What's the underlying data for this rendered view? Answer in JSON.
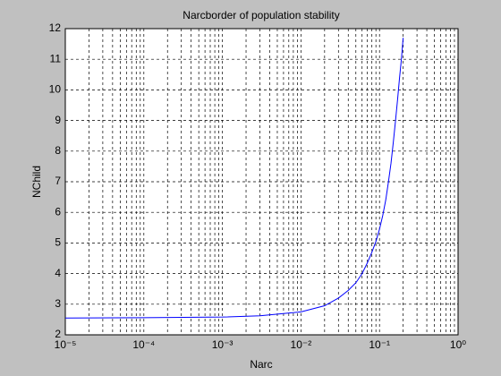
{
  "chart_data": {
    "type": "line",
    "title": "Narcborder of population stability",
    "x_label": "Narc",
    "y_label": "NChild",
    "x": [
      1e-05,
      0.0001,
      0.001,
      0.003,
      0.01,
      0.02,
      0.03,
      0.04,
      0.05,
      0.06,
      0.07,
      0.08,
      0.09,
      0.1,
      0.11,
      0.12,
      0.13,
      0.14,
      0.15,
      0.16,
      0.17,
      0.18,
      0.19,
      0.2
    ],
    "series": [
      {
        "name": "NChild",
        "color": "#0000ff",
        "values": [
          2.55,
          2.56,
          2.58,
          2.62,
          2.75,
          2.95,
          3.2,
          3.45,
          3.7,
          4.0,
          4.35,
          4.7,
          5.05,
          5.45,
          5.9,
          6.4,
          7.0,
          7.6,
          8.3,
          9.0,
          9.7,
          10.4,
          11.0,
          11.7
        ]
      }
    ],
    "xlim": [
      1e-05,
      1
    ],
    "ylim": [
      2,
      12
    ],
    "log_x": true,
    "grid": true,
    "xticks": [
      {
        "value": 1e-05,
        "label": "10⁻⁵"
      },
      {
        "value": 0.0001,
        "label": "10⁻⁴"
      },
      {
        "value": 0.001,
        "label": "10⁻³"
      },
      {
        "value": 0.01,
        "label": "10⁻²"
      },
      {
        "value": 0.1,
        "label": "10⁻¹"
      },
      {
        "value": 1,
        "label": "10⁰"
      }
    ],
    "yticks": [
      2,
      3,
      4,
      5,
      6,
      7,
      8,
      9,
      10,
      11,
      12
    ]
  }
}
